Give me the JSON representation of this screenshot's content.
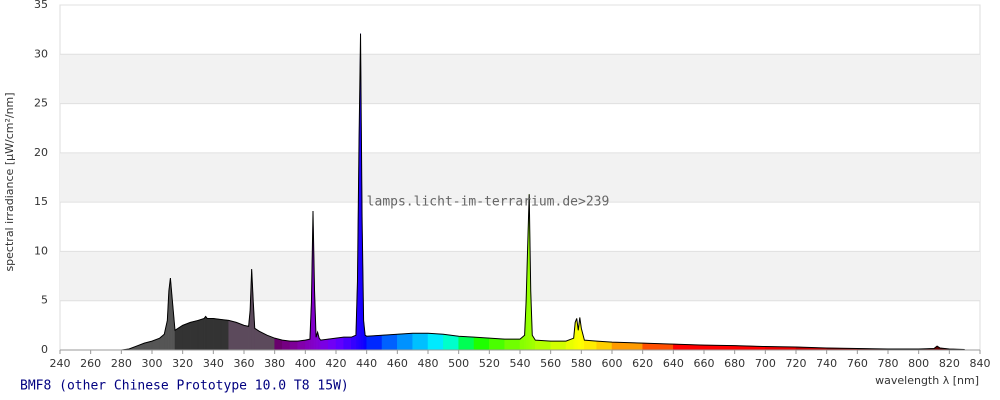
{
  "chart_data": {
    "type": "spectrum",
    "title": "BMF8 (other Chinese Prototype 10.0 T8 15W)",
    "watermark": "lamps.licht-im-terrarium.de>239",
    "y_label": "spectral irradiance [µW/cm²/nm]",
    "x_label": "wavelength λ [nm]",
    "x": [
      280,
      285,
      290,
      295,
      300,
      305,
      308,
      310,
      311,
      312,
      313,
      315,
      318,
      320,
      325,
      330,
      334,
      335,
      336,
      340,
      345,
      350,
      355,
      360,
      363,
      364,
      365,
      366,
      367,
      370,
      375,
      380,
      385,
      390,
      395,
      400,
      403,
      404,
      405,
      406,
      407,
      408,
      409,
      410,
      415,
      420,
      425,
      430,
      433,
      434,
      435,
      436,
      437,
      438,
      439,
      440,
      450,
      460,
      470,
      480,
      490,
      500,
      510,
      520,
      530,
      540,
      543,
      544,
      545,
      546,
      547,
      548,
      550,
      560,
      570,
      575,
      576,
      577,
      578,
      579,
      580,
      582,
      590,
      600,
      620,
      640,
      660,
      680,
      700,
      720,
      740,
      760,
      780,
      800,
      810,
      812,
      814,
      820,
      830
    ],
    "values": [
      0,
      0.1,
      0.4,
      0.7,
      0.9,
      1.2,
      1.6,
      3,
      6,
      7.3,
      5.5,
      2,
      2.3,
      2.5,
      2.8,
      3.0,
      3.2,
      3.4,
      3.2,
      3.2,
      3.1,
      3.0,
      2.8,
      2.5,
      2.4,
      4,
      8.2,
      5,
      2.2,
      1.9,
      1.5,
      1.2,
      1.0,
      0.9,
      0.9,
      1.0,
      1.1,
      5,
      14.1,
      6,
      1.3,
      1.8,
      1.2,
      1.0,
      1.1,
      1.2,
      1.3,
      1.3,
      1.5,
      7,
      21,
      32.1,
      13.5,
      3,
      1.5,
      1.4,
      1.5,
      1.6,
      1.7,
      1.7,
      1.6,
      1.4,
      1.3,
      1.2,
      1.1,
      1.1,
      1.5,
      5,
      10.5,
      15.8,
      6,
      1.5,
      1.0,
      0.9,
      0.9,
      1.2,
      2.8,
      3.2,
      2.0,
      3.3,
      2.2,
      1.0,
      0.9,
      0.8,
      0.7,
      0.6,
      0.5,
      0.45,
      0.35,
      0.3,
      0.2,
      0.15,
      0.1,
      0.1,
      0.15,
      0.4,
      0.2,
      0.1,
      0.05
    ],
    "xlim": [
      240,
      840
    ],
    "ylim": [
      0,
      35
    ],
    "xticks": [
      240,
      260,
      280,
      300,
      320,
      340,
      360,
      380,
      400,
      420,
      440,
      460,
      480,
      500,
      520,
      540,
      560,
      580,
      600,
      620,
      640,
      660,
      680,
      700,
      720,
      740,
      760,
      780,
      800,
      820,
      840
    ],
    "yticks": [
      0,
      5,
      10,
      15,
      20,
      25,
      30,
      35
    ],
    "grid": true
  }
}
